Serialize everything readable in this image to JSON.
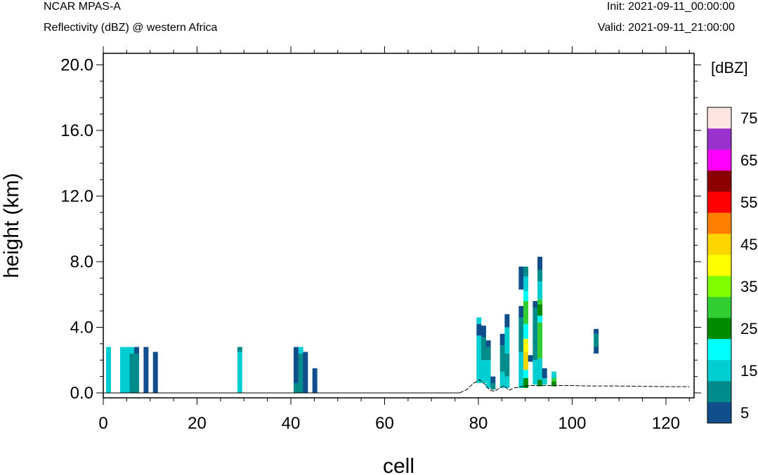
{
  "header": {
    "model": "NCAR MPAS-A",
    "field": "Reflectivity (dBZ) @ western Africa",
    "init": "Init: 2021-09-11_00:00:00",
    "valid": "Valid: 2021-09-11_21:00:00"
  },
  "chart_data": {
    "type": "heatmap",
    "xlabel": "cell",
    "ylabel": "height (km)",
    "xlim": [
      0,
      126
    ],
    "ylim": [
      -0.3,
      20.7
    ],
    "x_ticks": [
      "0",
      "20",
      "40",
      "60",
      "80",
      "100",
      "120"
    ],
    "y_ticks": [
      "0.0",
      "4.0",
      "8.0",
      "12.0",
      "16.0",
      "20.0"
    ],
    "x_tick_values": [
      0,
      20,
      40,
      60,
      80,
      100,
      120
    ],
    "y_tick_values": [
      0,
      4,
      8,
      12,
      16,
      20
    ],
    "colorbar": {
      "unit_label": "[dBZ]",
      "levels": [
        5,
        10,
        15,
        20,
        25,
        30,
        35,
        40,
        45,
        50,
        55,
        60,
        65,
        70,
        75
      ],
      "colors": [
        "#104e8b",
        "#008b8b",
        "#00ced1",
        "#00ffff",
        "#008b00",
        "#32cd32",
        "#7fff00",
        "#ffff00",
        "#ffd700",
        "#ff7f00",
        "#ff0000",
        "#8b0000",
        "#ff00ff",
        "#9932cc",
        "#ffe4e1"
      ],
      "labels": [
        "5",
        "15",
        "25",
        "35",
        "45",
        "55",
        "65",
        "75"
      ]
    },
    "cells": [
      {
        "x": 0.6,
        "bands": [
          [
            0.0,
            2.8,
            15
          ]
        ]
      },
      {
        "x": 3.6,
        "bands": [
          [
            0.0,
            2.8,
            15
          ]
        ]
      },
      {
        "x": 4.6,
        "bands": [
          [
            0.0,
            2.8,
            15
          ]
        ]
      },
      {
        "x": 5.6,
        "bands": [
          [
            0.0,
            2.4,
            10
          ],
          [
            2.4,
            2.8,
            15
          ]
        ]
      },
      {
        "x": 6.6,
        "bands": [
          [
            0.0,
            2.4,
            10
          ],
          [
            2.4,
            2.8,
            5
          ]
        ]
      },
      {
        "x": 8.6,
        "bands": [
          [
            0.0,
            2.8,
            5
          ]
        ]
      },
      {
        "x": 10.6,
        "bands": [
          [
            0.0,
            2.5,
            5
          ]
        ]
      },
      {
        "x": 28.6,
        "bands": [
          [
            0.0,
            2.5,
            15
          ],
          [
            2.5,
            2.8,
            10
          ]
        ]
      },
      {
        "x": 40.6,
        "bands": [
          [
            0.0,
            0.6,
            10
          ],
          [
            0.6,
            2.8,
            5
          ]
        ]
      },
      {
        "x": 41.6,
        "bands": [
          [
            0.0,
            2.4,
            10
          ],
          [
            2.4,
            2.8,
            15
          ]
        ]
      },
      {
        "x": 42.6,
        "bands": [
          [
            0.0,
            2.5,
            5
          ]
        ]
      },
      {
        "x": 44.6,
        "bands": [
          [
            0.0,
            1.5,
            5
          ]
        ]
      },
      {
        "x": 79.6,
        "bands": [
          [
            0.6,
            3.5,
            15
          ],
          [
            3.5,
            4.2,
            5
          ],
          [
            4.2,
            4.6,
            15
          ]
        ]
      },
      {
        "x": 80.6,
        "bands": [
          [
            0.6,
            2.0,
            15
          ],
          [
            2.0,
            3.4,
            10
          ],
          [
            3.4,
            4.1,
            5
          ]
        ]
      },
      {
        "x": 81.6,
        "bands": [
          [
            0.3,
            2.0,
            15
          ],
          [
            2.0,
            2.8,
            10
          ],
          [
            2.8,
            3.2,
            5
          ]
        ]
      },
      {
        "x": 82.6,
        "bands": [
          [
            0.2,
            0.6,
            10
          ],
          [
            0.6,
            1.0,
            5
          ]
        ]
      },
      {
        "x": 84.6,
        "bands": [
          [
            0.3,
            1.3,
            15
          ],
          [
            1.3,
            2.9,
            10
          ],
          [
            2.9,
            3.6,
            5
          ]
        ]
      },
      {
        "x": 85.6,
        "bands": [
          [
            0.3,
            1.0,
            15
          ],
          [
            1.0,
            2.4,
            10
          ],
          [
            2.4,
            4.0,
            15
          ],
          [
            4.0,
            4.8,
            5
          ]
        ]
      },
      {
        "x": 88.6,
        "bands": [
          [
            0.3,
            2.5,
            15
          ],
          [
            2.5,
            4.6,
            10
          ],
          [
            4.6,
            5.3,
            5
          ],
          [
            6.3,
            7.7,
            5
          ]
        ]
      },
      {
        "x": 89.6,
        "bands": [
          [
            0.3,
            0.9,
            25
          ],
          [
            0.9,
            1.4,
            20
          ],
          [
            1.4,
            2.5,
            45
          ],
          [
            2.5,
            3.3,
            40
          ],
          [
            3.3,
            4.2,
            20
          ],
          [
            4.2,
            5.6,
            30
          ],
          [
            5.6,
            6.2,
            20
          ],
          [
            6.2,
            7.1,
            15
          ],
          [
            7.1,
            7.7,
            10
          ]
        ]
      },
      {
        "x": 90.6,
        "bands": [
          [
            1.9,
            2.3,
            5
          ]
        ]
      },
      {
        "x": 91.6,
        "bands": [
          [
            0.5,
            2.0,
            15
          ],
          [
            2.0,
            5.2,
            10
          ],
          [
            5.2,
            5.6,
            5
          ]
        ]
      },
      {
        "x": 92.6,
        "bands": [
          [
            0.4,
            0.8,
            25
          ],
          [
            0.8,
            2.1,
            15
          ],
          [
            2.1,
            4.3,
            30
          ],
          [
            4.3,
            4.7,
            20
          ],
          [
            4.7,
            5.4,
            25
          ],
          [
            5.4,
            5.7,
            30
          ],
          [
            5.7,
            6.8,
            15
          ],
          [
            6.8,
            7.5,
            10
          ],
          [
            7.5,
            8.3,
            5
          ]
        ]
      },
      {
        "x": 93.6,
        "bands": [
          [
            0.5,
            0.9,
            15
          ],
          [
            0.9,
            1.5,
            5
          ]
        ]
      },
      {
        "x": 95.6,
        "bands": [
          [
            0.4,
            0.7,
            25
          ],
          [
            0.7,
            0.9,
            30
          ],
          [
            0.9,
            1.3,
            15
          ]
        ]
      },
      {
        "x": 104.6,
        "bands": [
          [
            2.4,
            2.8,
            5
          ],
          [
            2.8,
            3.6,
            10
          ],
          [
            3.6,
            3.9,
            5
          ]
        ]
      }
    ],
    "terrain": [
      [
        76.0,
        0.0
      ],
      [
        77.5,
        0.2
      ],
      [
        79.0,
        0.6
      ],
      [
        80.3,
        0.8
      ],
      [
        81.5,
        0.5
      ],
      [
        82.5,
        0.15
      ],
      [
        83.5,
        0.1
      ],
      [
        84.5,
        0.3
      ],
      [
        85.5,
        0.45
      ],
      [
        86.5,
        0.15
      ],
      [
        87.5,
        0.3
      ],
      [
        88.5,
        0.35
      ],
      [
        89.5,
        0.4
      ],
      [
        91.0,
        0.45
      ],
      [
        93.0,
        0.45
      ],
      [
        95.0,
        0.45
      ],
      [
        97.0,
        0.45
      ],
      [
        100.0,
        0.45
      ],
      [
        103.0,
        0.42
      ],
      [
        106.0,
        0.42
      ],
      [
        110.0,
        0.42
      ],
      [
        115.0,
        0.4
      ],
      [
        120.0,
        0.38
      ],
      [
        125.0,
        0.38
      ]
    ]
  }
}
